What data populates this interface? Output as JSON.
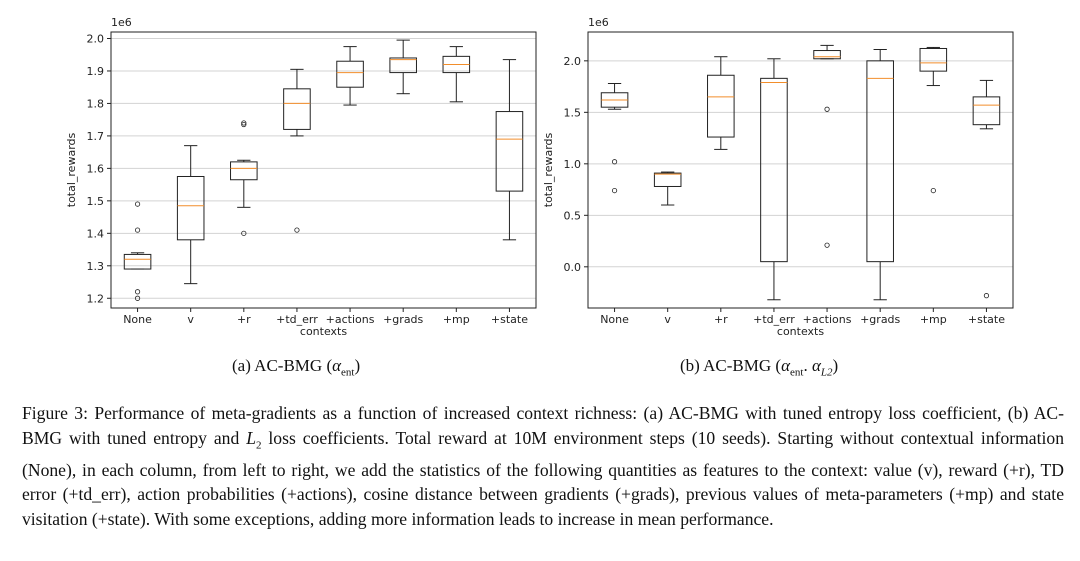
{
  "subcaptions": {
    "a_prefix": "(a) AC-BMG (",
    "a_alpha": "α",
    "a_sub": "ent",
    "a_suffix": ")",
    "b_prefix": "(b) AC-BMG (",
    "b_alpha1": "α",
    "b_sub1": "ent",
    "b_mid": ". ",
    "b_alpha2": "α",
    "b_sub2": "L2",
    "b_suffix": ")"
  },
  "caption": {
    "text_1": "Figure 3: Performance of meta-gradients as a function of increased context richness: (a) AC-BMG with tuned entropy loss coefficient, (b) AC-BMG with tuned entropy and ",
    "l2_letter": "L",
    "l2_sub": "2",
    "text_2": " loss coefficients. Total reward at 10M environment steps (10 seeds). Starting without contextual information (None), in each column, from left to right, we add the statistics of the following quantities as features to the context: value (v), reward (+r), TD error (+td_err), action probabilities (+actions), cosine distance between gradients (+grads), previous values of meta-parameters (+mp) and state visitation (+state). With some exceptions, adding more information leads to increase in mean performance."
  },
  "colors": {
    "median": "#f28e2b",
    "box": "#222222",
    "grid": "#d3d3d3"
  },
  "chart_data": [
    {
      "type": "box",
      "xlabel": "contexts",
      "ylabel": "total_rewards",
      "offset_text": "1e6",
      "ylim": [
        1.17,
        2.02
      ],
      "yticks": [
        1.2,
        1.3,
        1.4,
        1.5,
        1.6,
        1.7,
        1.8,
        1.9,
        2.0
      ],
      "ytick_labels": [
        "1.2",
        "1.3",
        "1.4",
        "1.5",
        "1.6",
        "1.7",
        "1.8",
        "1.9",
        "2.0"
      ],
      "grid": true,
      "categories": [
        "None",
        "v",
        "+r",
        "+td_err",
        "+actions",
        "+grads",
        "+mp",
        "+state"
      ],
      "boxes": [
        {
          "whislo": 1.29,
          "q1": 1.29,
          "med": 1.32,
          "q3": 1.335,
          "whishi": 1.34,
          "fliers": [
            1.49,
            1.41,
            1.22,
            1.2
          ]
        },
        {
          "whislo": 1.245,
          "q1": 1.38,
          "med": 1.485,
          "q3": 1.575,
          "whishi": 1.67,
          "fliers": []
        },
        {
          "whislo": 1.48,
          "q1": 1.565,
          "med": 1.6,
          "q3": 1.62,
          "whishi": 1.625,
          "fliers": [
            1.74,
            1.735,
            1.4
          ]
        },
        {
          "whislo": 1.7,
          "q1": 1.72,
          "med": 1.8,
          "q3": 1.845,
          "whishi": 1.905,
          "fliers": [
            1.41
          ]
        },
        {
          "whislo": 1.795,
          "q1": 1.85,
          "med": 1.895,
          "q3": 1.93,
          "whishi": 1.975,
          "fliers": []
        },
        {
          "whislo": 1.83,
          "q1": 1.895,
          "med": 1.935,
          "q3": 1.94,
          "whishi": 1.995,
          "fliers": []
        },
        {
          "whislo": 1.805,
          "q1": 1.895,
          "med": 1.92,
          "q3": 1.945,
          "whishi": 1.975,
          "fliers": []
        },
        {
          "whislo": 1.38,
          "q1": 1.53,
          "med": 1.69,
          "q3": 1.775,
          "whishi": 1.935,
          "fliers": []
        }
      ]
    },
    {
      "type": "box",
      "xlabel": "contexts",
      "ylabel": "total_rewards",
      "offset_text": "1e6",
      "ylim": [
        -0.4,
        2.28
      ],
      "yticks": [
        0.0,
        0.5,
        1.0,
        1.5,
        2.0
      ],
      "ytick_labels": [
        "0.0",
        "0.5",
        "1.0",
        "1.5",
        "2.0"
      ],
      "grid": true,
      "categories": [
        "None",
        "v",
        "+r",
        "+td_err",
        "+actions",
        "+grads",
        "+mp",
        "+state"
      ],
      "boxes": [
        {
          "whislo": 1.53,
          "q1": 1.55,
          "med": 1.62,
          "q3": 1.69,
          "whishi": 1.78,
          "fliers": [
            1.02,
            0.74
          ]
        },
        {
          "whislo": 0.6,
          "q1": 0.78,
          "med": 0.9,
          "q3": 0.91,
          "whishi": 0.92,
          "fliers": []
        },
        {
          "whislo": 1.14,
          "q1": 1.26,
          "med": 1.65,
          "q3": 1.86,
          "whishi": 2.04,
          "fliers": []
        },
        {
          "whislo": -0.32,
          "q1": 0.05,
          "med": 1.79,
          "q3": 1.83,
          "whishi": 2.02,
          "fliers": []
        },
        {
          "whislo": 2.02,
          "q1": 2.02,
          "med": 2.04,
          "q3": 2.1,
          "whishi": 2.15,
          "fliers": [
            1.53,
            0.21
          ]
        },
        {
          "whislo": -0.32,
          "q1": 0.05,
          "med": 1.83,
          "q3": 2.0,
          "whishi": 2.11,
          "fliers": []
        },
        {
          "whislo": 1.76,
          "q1": 1.9,
          "med": 1.98,
          "q3": 2.12,
          "whishi": 2.13,
          "fliers": [
            0.74
          ]
        },
        {
          "whislo": 1.34,
          "q1": 1.38,
          "med": 1.57,
          "q3": 1.65,
          "whishi": 1.81,
          "fliers": [
            -0.28
          ]
        }
      ]
    }
  ]
}
